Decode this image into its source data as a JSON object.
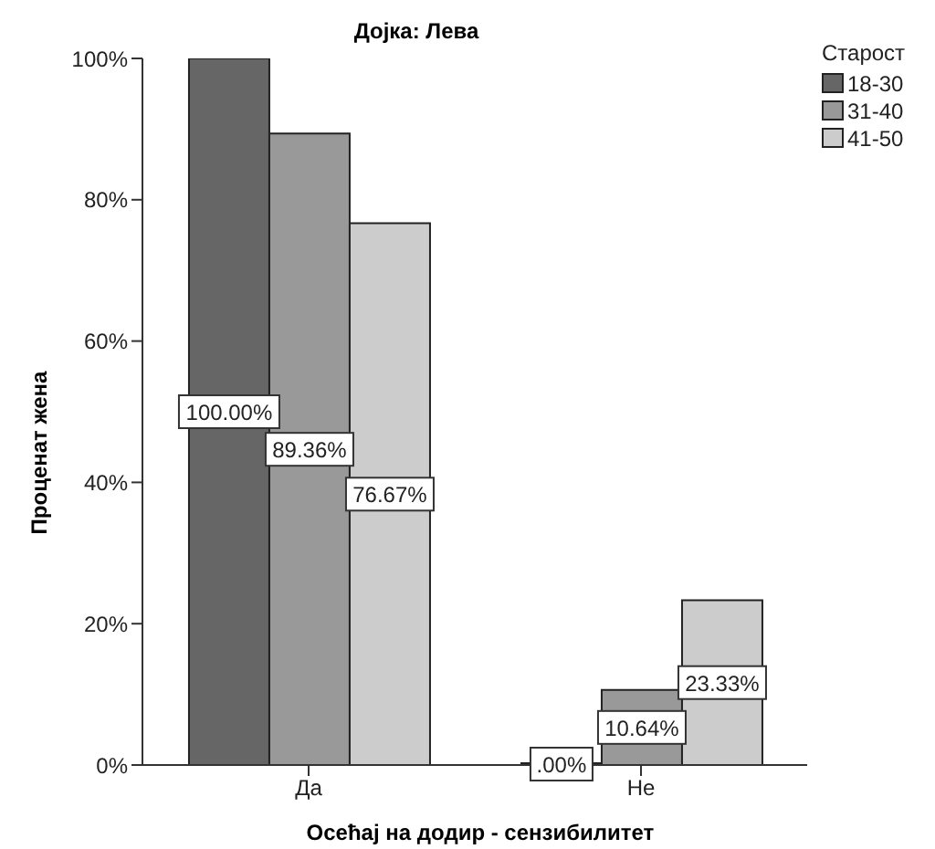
{
  "chart_data": {
    "type": "bar",
    "title": "Дојка: Лева",
    "xlabel": "Осећај на додир - сензибилитет",
    "ylabel": "Проценат жена",
    "legend_title": "Старост",
    "legend": "top right",
    "grid": false,
    "categories": [
      "Да",
      "Не"
    ],
    "ylim": [
      0,
      100
    ],
    "yticks": [
      {
        "value": 0,
        "label": "0%"
      },
      {
        "value": 20,
        "label": "20%"
      },
      {
        "value": 40,
        "label": "40%"
      },
      {
        "value": 60,
        "label": "60%"
      },
      {
        "value": 80,
        "label": "80%"
      },
      {
        "value": 100,
        "label": "100%"
      }
    ],
    "series": [
      {
        "name": "18-30",
        "color": "#666666",
        "values": [
          100,
          0
        ],
        "value_labels": [
          "100.00%",
          ".00%"
        ]
      },
      {
        "name": "31-40",
        "color": "#999999",
        "values": [
          89.36,
          10.64
        ],
        "value_labels": [
          "89.36%",
          "10.64%"
        ]
      },
      {
        "name": "41-50",
        "color": "#cccccc",
        "values": [
          76.67,
          23.33
        ],
        "value_labels": [
          "76.67%",
          "23.33%"
        ]
      }
    ]
  }
}
